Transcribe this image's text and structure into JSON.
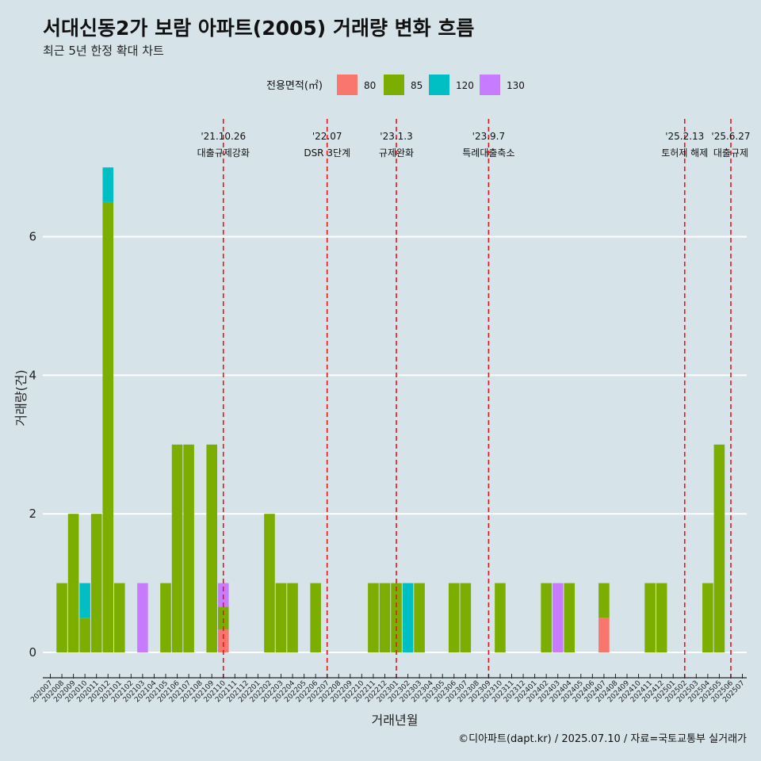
{
  "title": "서대신동2가 보람 아파트(2005) 거래량 변화 흐름",
  "subtitle": "최근 5년 한정 확대 차트",
  "caption": "©디아파트(dapt.kr) / 2025.07.10 / 자료=국토교통부 실거래가",
  "colors": {
    "80": "#f8766d",
    "85": "#7cae00",
    "120": "#00bfc4",
    "130": "#c77cff",
    "event_line": "#e8141a",
    "background": "#d6e4ea",
    "grid": "#ffffff"
  },
  "chart_data": {
    "type": "bar",
    "stacked": true,
    "xlabel": "거래년월",
    "ylabel": "거래량(건)",
    "ylim": [
      0,
      7
    ],
    "yticks": [
      0,
      2,
      4,
      6
    ],
    "legend": {
      "title": "전용면적(㎡)",
      "position": "top",
      "entries": [
        "80",
        "85",
        "120",
        "130"
      ]
    },
    "categories": [
      "202007",
      "202008",
      "202009",
      "202010",
      "202011",
      "202012",
      "202101",
      "202102",
      "202103",
      "202104",
      "202105",
      "202106",
      "202107",
      "202108",
      "202109",
      "202110",
      "202111",
      "202112",
      "202201",
      "202202",
      "202203",
      "202204",
      "202205",
      "202206",
      "202207",
      "202208",
      "202209",
      "202210",
      "202211",
      "202212",
      "202301",
      "202302",
      "202303",
      "202304",
      "202305",
      "202306",
      "202307",
      "202308",
      "202309",
      "202310",
      "202311",
      "202312",
      "202401",
      "202402",
      "202403",
      "202404",
      "202405",
      "202406",
      "202407",
      "202408",
      "202409",
      "202410",
      "202411",
      "202412",
      "202501",
      "202502",
      "202503",
      "202504",
      "202505",
      "202506",
      "202507"
    ],
    "bars": [
      {
        "x": "202008",
        "segments": [
          {
            "area": "85",
            "count": 1
          }
        ]
      },
      {
        "x": "202009",
        "segments": [
          {
            "area": "85",
            "count": 2
          }
        ]
      },
      {
        "x": "202010",
        "segments": [
          {
            "area": "85",
            "count": 0.5
          },
          {
            "area": "120",
            "count": 0.5
          }
        ]
      },
      {
        "x": "202011",
        "segments": [
          {
            "area": "85",
            "count": 2
          }
        ]
      },
      {
        "x": "202012",
        "segments": [
          {
            "area": "85",
            "count": 6.5
          },
          {
            "area": "120",
            "count": 0.5
          }
        ]
      },
      {
        "x": "202101",
        "segments": [
          {
            "area": "85",
            "count": 1
          }
        ]
      },
      {
        "x": "202103",
        "segments": [
          {
            "area": "130",
            "count": 1
          }
        ]
      },
      {
        "x": "202105",
        "segments": [
          {
            "area": "85",
            "count": 1
          }
        ]
      },
      {
        "x": "202106",
        "segments": [
          {
            "area": "85",
            "count": 3
          }
        ]
      },
      {
        "x": "202107",
        "segments": [
          {
            "area": "85",
            "count": 3
          }
        ]
      },
      {
        "x": "202109",
        "segments": [
          {
            "area": "85",
            "count": 3
          }
        ]
      },
      {
        "x": "202110",
        "segments": [
          {
            "area": "80",
            "count": 0.33
          },
          {
            "area": "85",
            "count": 0.33
          },
          {
            "area": "130",
            "count": 0.34
          }
        ]
      },
      {
        "x": "202202",
        "segments": [
          {
            "area": "85",
            "count": 2
          }
        ]
      },
      {
        "x": "202203",
        "segments": [
          {
            "area": "85",
            "count": 1
          }
        ]
      },
      {
        "x": "202204",
        "segments": [
          {
            "area": "85",
            "count": 1
          }
        ]
      },
      {
        "x": "202206",
        "segments": [
          {
            "area": "85",
            "count": 1
          }
        ]
      },
      {
        "x": "202211",
        "segments": [
          {
            "area": "85",
            "count": 1
          }
        ]
      },
      {
        "x": "202212",
        "segments": [
          {
            "area": "85",
            "count": 1
          }
        ]
      },
      {
        "x": "202301",
        "segments": [
          {
            "area": "85",
            "count": 1
          }
        ]
      },
      {
        "x": "202302",
        "segments": [
          {
            "area": "120",
            "count": 1
          }
        ]
      },
      {
        "x": "202303",
        "segments": [
          {
            "area": "85",
            "count": 1
          }
        ]
      },
      {
        "x": "202306",
        "segments": [
          {
            "area": "85",
            "count": 1
          }
        ]
      },
      {
        "x": "202307",
        "segments": [
          {
            "area": "85",
            "count": 1
          }
        ]
      },
      {
        "x": "202310",
        "segments": [
          {
            "area": "85",
            "count": 1
          }
        ]
      },
      {
        "x": "202402",
        "segments": [
          {
            "area": "85",
            "count": 1
          }
        ]
      },
      {
        "x": "202403",
        "segments": [
          {
            "area": "130",
            "count": 1
          }
        ]
      },
      {
        "x": "202404",
        "segments": [
          {
            "area": "85",
            "count": 1
          }
        ]
      },
      {
        "x": "202407",
        "segments": [
          {
            "area": "80",
            "count": 0.5
          },
          {
            "area": "85",
            "count": 0.5
          }
        ]
      },
      {
        "x": "202411",
        "segments": [
          {
            "area": "85",
            "count": 1
          }
        ]
      },
      {
        "x": "202412",
        "segments": [
          {
            "area": "85",
            "count": 1
          }
        ]
      },
      {
        "x": "202504",
        "segments": [
          {
            "area": "85",
            "count": 1
          }
        ]
      },
      {
        "x": "202505",
        "segments": [
          {
            "area": "85",
            "count": 3
          }
        ]
      }
    ],
    "events": [
      {
        "date": "'21.10.26",
        "label": "대출규제강화",
        "x": "202110"
      },
      {
        "date": "'22.07",
        "label": "DSR 3단계",
        "x": "202207"
      },
      {
        "date": "'23.1.3",
        "label": "규제완화",
        "x": "202301"
      },
      {
        "date": "'23.9.7",
        "label": "특례대출축소",
        "x": "202309"
      },
      {
        "date": "'25.2.13",
        "label": "토허제 해제",
        "x": "202502"
      },
      {
        "date": "'25.6.27",
        "label": "대출규제",
        "x": "202506"
      }
    ]
  }
}
